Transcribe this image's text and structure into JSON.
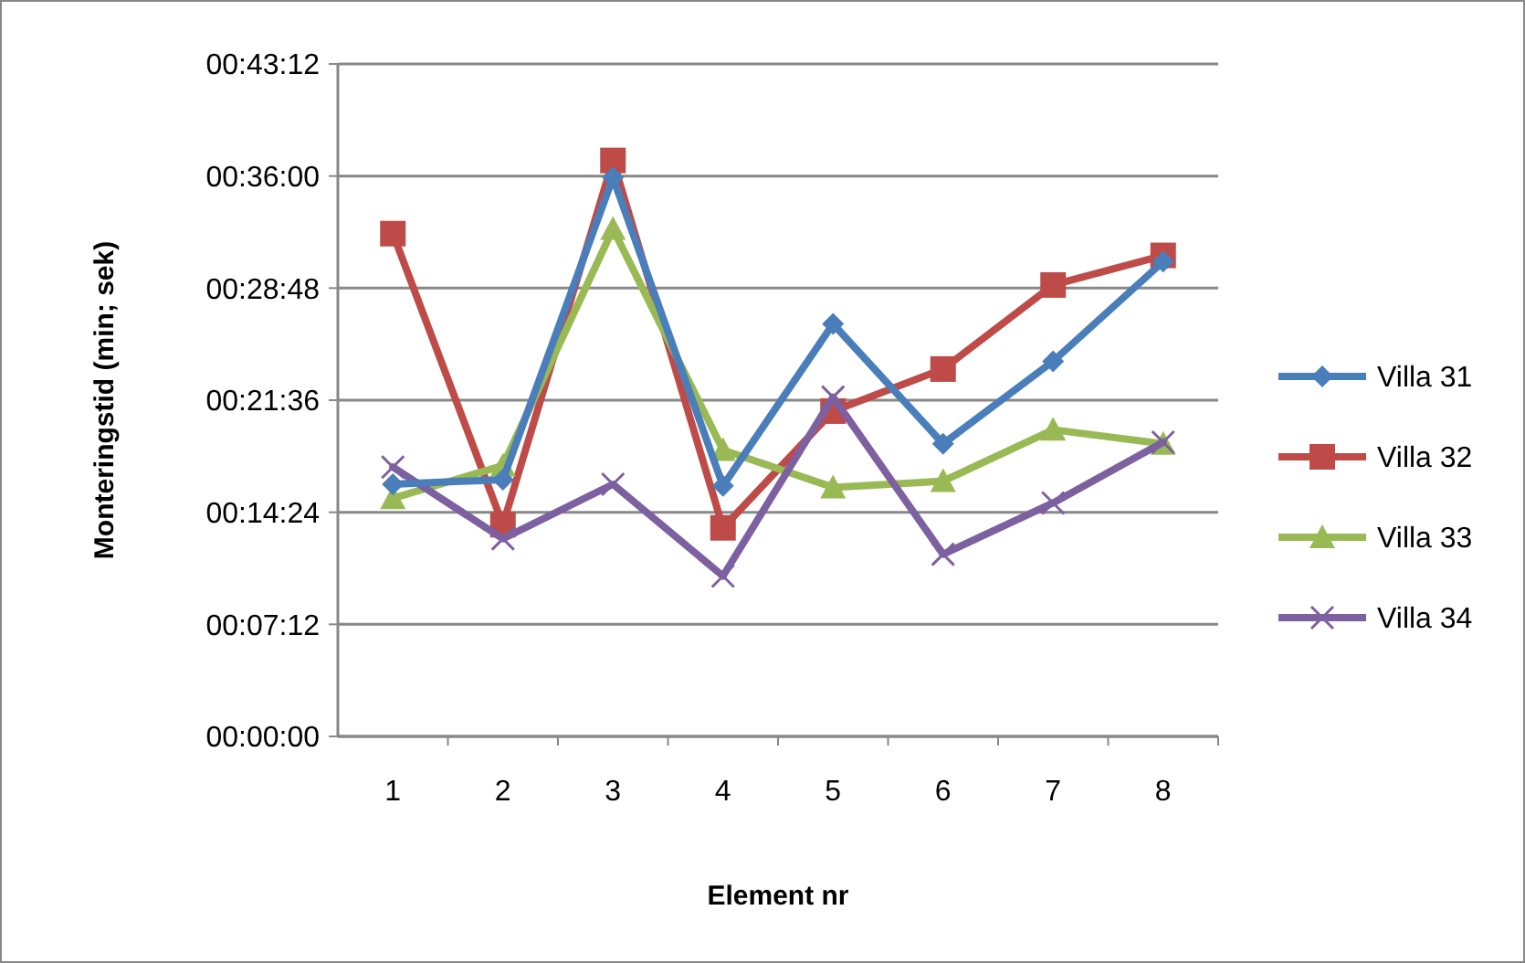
{
  "chart_data": {
    "type": "line",
    "xlabel": "Element nr",
    "ylabel": "Monteringstid (min; sek)",
    "categories": [
      "1",
      "2",
      "3",
      "4",
      "5",
      "6",
      "7",
      "8"
    ],
    "series": [
      {
        "name": "Villa 31",
        "color": "#4a7ebb",
        "marker": "diamond",
        "values": [
          16.2,
          16.5,
          35.9,
          16.1,
          26.5,
          18.8,
          24.1,
          30.5
        ]
      },
      {
        "name": "Villa 32",
        "color": "#be4b48",
        "marker": "square",
        "values": [
          32.3,
          13.6,
          37.0,
          13.4,
          20.9,
          23.6,
          29.0,
          30.9
        ]
      },
      {
        "name": "Villa 33",
        "color": "#98b954",
        "marker": "triangle",
        "values": [
          15.3,
          17.4,
          32.6,
          18.4,
          16.0,
          16.4,
          19.7,
          18.8
        ]
      },
      {
        "name": "Villa 34",
        "color": "#7d60a0",
        "marker": "cross",
        "values": [
          17.3,
          12.7,
          16.2,
          10.3,
          21.8,
          11.7,
          15.0,
          18.9
        ]
      }
    ],
    "ylim": [
      0,
      43.2
    ],
    "yticks": [
      {
        "value": 0,
        "label": "00:00:00"
      },
      {
        "value": 7.2,
        "label": "00:07:12"
      },
      {
        "value": 14.4,
        "label": "00:14:24"
      },
      {
        "value": 21.6,
        "label": "00:21:36"
      },
      {
        "value": 28.8,
        "label": "00:28:48"
      },
      {
        "value": 36,
        "label": "00:36:00"
      },
      {
        "value": 43.2,
        "label": "00:43:12"
      }
    ],
    "grid": "y",
    "legend": "right",
    "line_style": "solid"
  }
}
